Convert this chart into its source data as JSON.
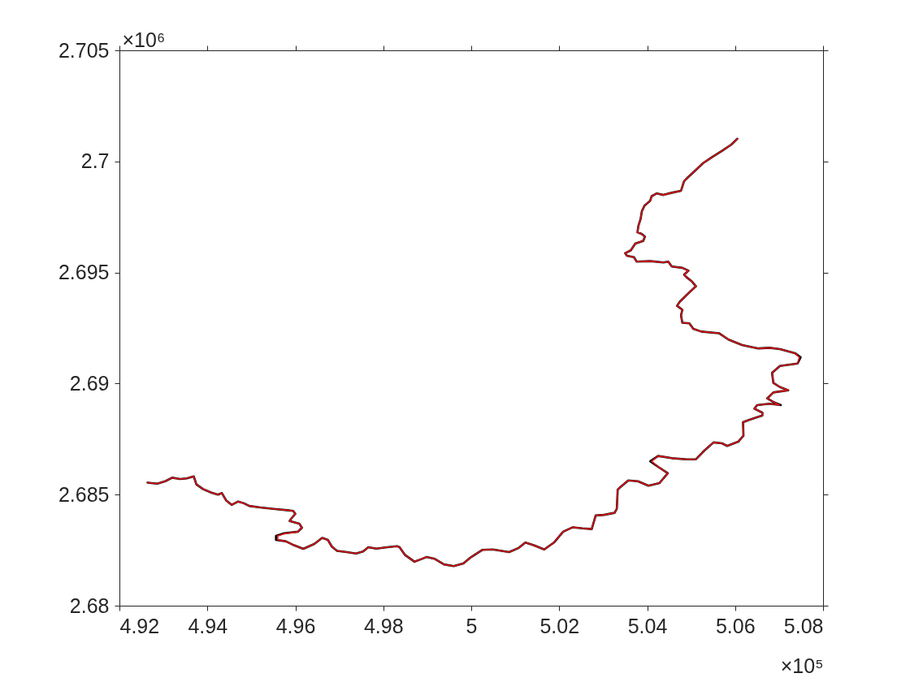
{
  "chart_data": {
    "type": "line",
    "xlabel": "×10⁵",
    "ylabel": "×10⁶",
    "xlim": [
      4.92,
      5.08
    ],
    "ylim": [
      2.68,
      2.705
    ],
    "xticks": [
      4.92,
      4.94,
      4.96,
      4.98,
      5,
      5.02,
      5.04,
      5.06,
      5.08
    ],
    "yticks": [
      2.68,
      2.685,
      2.69,
      2.695,
      2.7,
      2.705
    ],
    "series": [
      {
        "color": "#000000",
        "x": [
          4.9264,
          4.9286,
          4.9304,
          4.932,
          4.9338,
          4.9353,
          4.9369,
          4.9375,
          4.939,
          4.9409,
          4.9424,
          4.9433,
          4.9443,
          4.9455,
          4.947,
          4.9483,
          4.9495,
          4.952,
          4.955,
          4.9581,
          4.9595,
          4.96,
          4.959,
          4.9587,
          4.9609,
          4.9615,
          4.9606,
          4.9575,
          4.9556,
          4.9556,
          4.9578,
          4.9597,
          4.9618,
          4.9643,
          4.9661,
          4.9674,
          4.9683,
          4.9695,
          4.9717,
          4.9738,
          4.9754,
          4.9766,
          4.9784,
          4.9809,
          4.9831,
          4.9837,
          4.9849,
          4.9871,
          4.9883,
          4.9898,
          4.9917,
          4.9938,
          4.996,
          4.9982,
          5,
          5.0025,
          5.0049,
          5.0086,
          5.0108,
          5.0123,
          5.0142,
          5.0166,
          5.0188,
          5.0209,
          5.0231,
          5.0253,
          5.0274,
          5.0283,
          5.0302,
          5.0326,
          5.0331,
          5.0333,
          5.0339,
          5.0357,
          5.0379,
          5.0403,
          5.0428,
          5.0447,
          5.0425,
          5.0407,
          5.0425,
          5.0456,
          5.049,
          5.0511,
          5.053,
          5.0551,
          5.057,
          5.0582,
          5.0607,
          5.0619,
          5.0618,
          5.0634,
          5.0662,
          5.0662,
          5.0644,
          5.065,
          5.0678,
          5.0704,
          5.0687,
          5.0673,
          5.0687,
          5.0721,
          5.0702,
          5.0687,
          5.0684,
          5.0702,
          5.0742,
          5.0749,
          5.0736,
          5.0702,
          5.0678,
          5.0653,
          5.0616,
          5.0585,
          5.0564,
          5.0523,
          5.0505,
          5.0496,
          5.048,
          5.0477,
          5.048,
          5.0468,
          5.0474,
          5.0493,
          5.0511,
          5.0502,
          5.049,
          5.0484,
          5.0494,
          5.048,
          5.0456,
          5.0448,
          5.0437,
          5.0407,
          5.0376,
          5.037,
          5.0354,
          5.035,
          5.0363,
          5.0373,
          5.0391,
          5.0395,
          5.0388,
          5.0378,
          5.038,
          5.0385,
          5.0388,
          5.0394,
          5.0407,
          5.041,
          5.0422,
          5.0437,
          5.0456,
          5.0477,
          5.0484,
          5.0493,
          5.0511,
          5.0527,
          5.0548,
          5.057,
          5.0591,
          5.0605
        ],
        "values": [
          2.68554,
          2.68549,
          2.6856,
          2.68576,
          2.6857,
          2.68573,
          2.68582,
          2.68546,
          2.68525,
          2.68509,
          2.685,
          2.68507,
          2.68473,
          2.68454,
          2.68469,
          2.68461,
          2.68449,
          2.68442,
          2.68436,
          2.6843,
          2.68427,
          2.68414,
          2.6839,
          2.68381,
          2.68369,
          2.68351,
          2.68333,
          2.68326,
          2.68314,
          2.68296,
          2.6829,
          2.68272,
          2.68256,
          2.68278,
          2.68305,
          2.68296,
          2.68266,
          2.68247,
          2.68241,
          2.68235,
          2.68244,
          2.68263,
          2.68257,
          2.68263,
          2.68268,
          2.68263,
          2.68229,
          2.68198,
          2.68207,
          2.68219,
          2.68211,
          2.68186,
          2.68178,
          2.6819,
          2.68219,
          2.68251,
          2.68253,
          2.68241,
          2.6826,
          2.68284,
          2.68272,
          2.68253,
          2.68284,
          2.68333,
          2.68353,
          2.68348,
          2.68345,
          2.68406,
          2.68409,
          2.68418,
          2.68436,
          2.68522,
          2.68534,
          2.68564,
          2.6856,
          2.6854,
          2.68552,
          2.68596,
          2.68625,
          2.6865,
          2.68674,
          2.68664,
          2.68659,
          2.68659,
          2.68698,
          2.68735,
          2.68731,
          2.68719,
          2.68738,
          2.68765,
          2.68826,
          2.68838,
          2.68856,
          2.68869,
          2.68887,
          2.68903,
          2.68909,
          2.68903,
          2.68917,
          2.68933,
          2.6896,
          2.6897,
          2.68984,
          2.69003,
          2.69048,
          2.69079,
          2.6909,
          2.69118,
          2.69137,
          2.69155,
          2.69161,
          2.69158,
          2.69173,
          2.69198,
          2.69226,
          2.69234,
          2.69246,
          2.69271,
          2.69274,
          2.69307,
          2.69332,
          2.6935,
          2.69368,
          2.69405,
          2.69438,
          2.69459,
          2.69478,
          2.6949,
          2.69508,
          2.69521,
          2.69527,
          2.69549,
          2.69545,
          2.69551,
          2.69549,
          2.69569,
          2.69575,
          2.69587,
          2.696,
          2.6963,
          2.69642,
          2.69661,
          2.69673,
          2.69681,
          2.69709,
          2.6974,
          2.69776,
          2.69801,
          2.69823,
          2.69843,
          2.69856,
          2.69849,
          2.69859,
          2.69868,
          2.69911,
          2.69929,
          2.69962,
          2.69992,
          2.7002,
          2.70047,
          2.70075,
          2.70102
        ]
      },
      {
        "color": "#e0141c",
        "x": [
          4.9264,
          4.9286,
          4.9304,
          4.932,
          4.9338,
          4.9353,
          4.9369,
          4.9375,
          4.939,
          4.9409,
          4.9424,
          4.9433,
          4.9443,
          4.9455,
          4.947,
          4.9483,
          4.9495,
          4.952,
          4.955,
          4.9581,
          4.9595,
          4.96,
          4.959,
          4.9587,
          4.9609,
          4.9615,
          4.9606,
          4.9575,
          4.956,
          4.956,
          4.9578,
          4.9597,
          4.9618,
          4.9643,
          4.9661,
          4.9674,
          4.9683,
          4.9695,
          4.9717,
          4.9738,
          4.9754,
          4.9766,
          4.9784,
          4.9809,
          4.9831,
          4.9837,
          4.9849,
          4.9871,
          4.9883,
          4.9898,
          4.9917,
          4.9938,
          4.996,
          4.9982,
          5,
          5.0025,
          5.0049,
          5.0086,
          5.0108,
          5.0123,
          5.0142,
          5.0166,
          5.0188,
          5.0209,
          5.0231,
          5.0253,
          5.0274,
          5.0283,
          5.0302,
          5.0326,
          5.0331,
          5.0333,
          5.0339,
          5.0357,
          5.0379,
          5.0403,
          5.0428,
          5.0447,
          5.0425,
          5.041,
          5.0425,
          5.0456,
          5.049,
          5.0511,
          5.053,
          5.0551,
          5.057,
          5.0582,
          5.0607,
          5.0619,
          5.0618,
          5.0634,
          5.0662,
          5.0662,
          5.0644,
          5.065,
          5.0678,
          5.0701,
          5.0687,
          5.0673,
          5.0687,
          5.0721,
          5.0702,
          5.0687,
          5.0684,
          5.0702,
          5.0742,
          5.0746,
          5.0736,
          5.0702,
          5.0678,
          5.0653,
          5.0616,
          5.0585,
          5.0564,
          5.0523,
          5.0505,
          5.0496,
          5.048,
          5.0477,
          5.048,
          5.0468,
          5.0474,
          5.0493,
          5.0511,
          5.0502,
          5.049,
          5.0484,
          5.0494,
          5.048,
          5.0456,
          5.0448,
          5.0437,
          5.0407,
          5.0376,
          5.037,
          5.0354,
          5.035,
          5.0363,
          5.0373,
          5.0391,
          5.0395,
          5.0388,
          5.0378,
          5.038,
          5.0385,
          5.0388,
          5.0394,
          5.0407,
          5.041,
          5.0422,
          5.0437,
          5.0456,
          5.0477,
          5.0484,
          5.0493,
          5.0511,
          5.0527,
          5.0548,
          5.057,
          5.0591,
          5.0605
        ],
        "values": [
          2.68554,
          2.68549,
          2.6856,
          2.68576,
          2.6857,
          2.68573,
          2.68582,
          2.68546,
          2.68525,
          2.68509,
          2.685,
          2.68507,
          2.68473,
          2.68454,
          2.68469,
          2.68461,
          2.68449,
          2.68442,
          2.68436,
          2.6843,
          2.68427,
          2.68414,
          2.6839,
          2.68381,
          2.68369,
          2.68351,
          2.68333,
          2.68324,
          2.68314,
          2.68296,
          2.6829,
          2.68272,
          2.68256,
          2.68278,
          2.68305,
          2.68296,
          2.68266,
          2.68247,
          2.68241,
          2.68235,
          2.68244,
          2.68263,
          2.68257,
          2.68263,
          2.68268,
          2.68263,
          2.68229,
          2.68198,
          2.68207,
          2.68219,
          2.68211,
          2.68186,
          2.68178,
          2.6819,
          2.68219,
          2.68251,
          2.68253,
          2.68241,
          2.6826,
          2.68284,
          2.68272,
          2.68253,
          2.68284,
          2.68333,
          2.68353,
          2.68348,
          2.68345,
          2.68406,
          2.68409,
          2.68418,
          2.68436,
          2.68522,
          2.68534,
          2.68564,
          2.6856,
          2.6854,
          2.68552,
          2.68596,
          2.68625,
          2.6865,
          2.68674,
          2.68664,
          2.68659,
          2.68659,
          2.68698,
          2.68735,
          2.68731,
          2.68719,
          2.68738,
          2.68765,
          2.68826,
          2.68838,
          2.68856,
          2.68869,
          2.68887,
          2.68903,
          2.68909,
          2.68903,
          2.68917,
          2.68933,
          2.6896,
          2.6897,
          2.68984,
          2.69003,
          2.69048,
          2.69079,
          2.6909,
          2.69118,
          2.69137,
          2.69155,
          2.69161,
          2.69158,
          2.69173,
          2.69198,
          2.69226,
          2.69234,
          2.69246,
          2.69271,
          2.69274,
          2.69307,
          2.69332,
          2.6935,
          2.69368,
          2.69405,
          2.69438,
          2.69459,
          2.69478,
          2.6949,
          2.69508,
          2.69521,
          2.69527,
          2.69549,
          2.69545,
          2.69551,
          2.69549,
          2.69569,
          2.69575,
          2.69587,
          2.696,
          2.6963,
          2.69642,
          2.69661,
          2.69673,
          2.69681,
          2.69709,
          2.6974,
          2.69776,
          2.69801,
          2.69823,
          2.69843,
          2.69856,
          2.69849,
          2.69859,
          2.69868,
          2.69911,
          2.69929,
          2.69962,
          2.69992,
          2.7002,
          2.70047,
          2.70075,
          2.70102
        ]
      }
    ]
  }
}
